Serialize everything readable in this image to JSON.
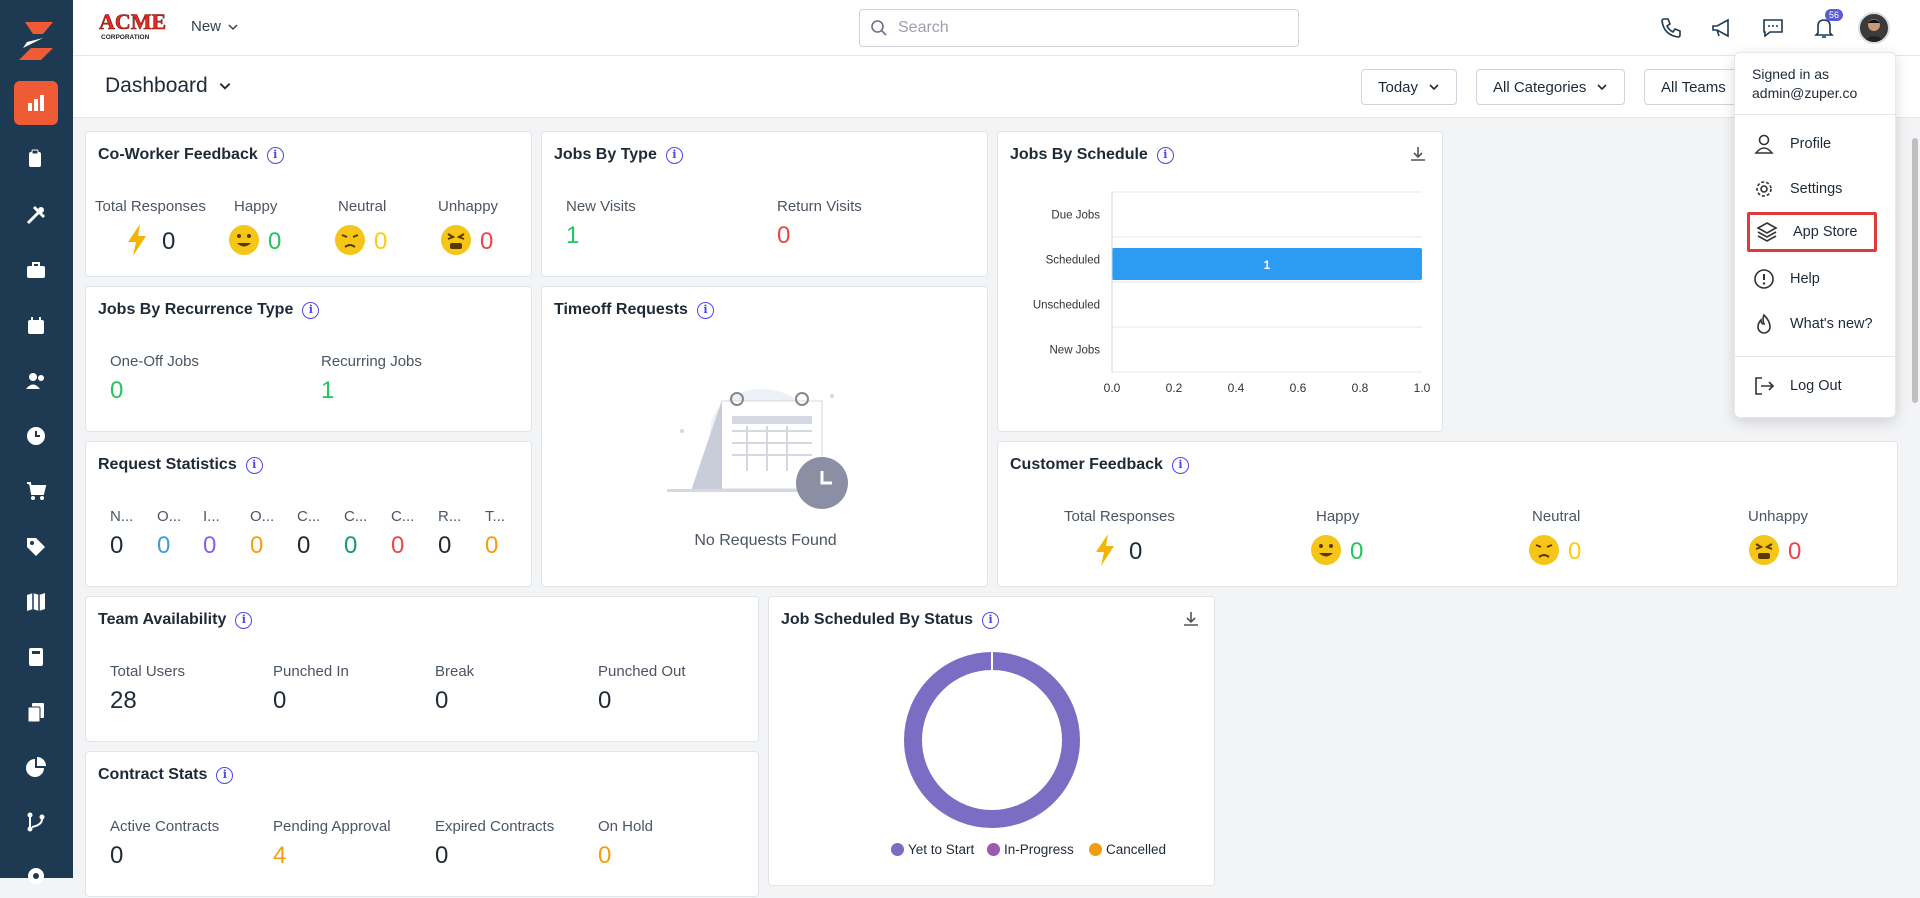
{
  "topbar": {
    "new_label": "New",
    "search_placeholder": "Search",
    "notif_count": "56"
  },
  "subbar": {
    "title": "Dashboard",
    "filters": [
      "Today",
      "All Categories",
      "All Teams"
    ]
  },
  "coworker": {
    "title": "Co-Worker Feedback",
    "labels": [
      "Total Responses",
      "Happy",
      "Neutral",
      "Unhappy"
    ],
    "values": [
      "0",
      "0",
      "0",
      "0"
    ]
  },
  "jobs_by_type": {
    "title": "Jobs By Type",
    "labels": [
      "New Visits",
      "Return Visits"
    ],
    "values": [
      "1",
      "0"
    ]
  },
  "jobs_by_schedule": {
    "title": "Jobs By Schedule"
  },
  "recurrence": {
    "title": "Jobs By Recurrence Type",
    "labels": [
      "One-Off Jobs",
      "Recurring Jobs"
    ],
    "values": [
      "0",
      "1"
    ]
  },
  "timeoff": {
    "title": "Timeoff Requests",
    "empty": "No Requests Found"
  },
  "request_stats": {
    "title": "Request Statistics",
    "labels": [
      "N...",
      "O...",
      "I...",
      "O...",
      "C...",
      "C...",
      "C...",
      "R...",
      "T..."
    ],
    "values": [
      "0",
      "0",
      "0",
      "0",
      "0",
      "0",
      "0",
      "0",
      "0"
    ]
  },
  "customer_feedback": {
    "title": "Customer Feedback",
    "labels": [
      "Total Responses",
      "Happy",
      "Neutral",
      "Unhappy"
    ],
    "values": [
      "0",
      "0",
      "0",
      "0"
    ]
  },
  "team": {
    "title": "Team Availability",
    "labels": [
      "Total Users",
      "Punched In",
      "Break",
      "Punched Out"
    ],
    "values": [
      "28",
      "0",
      "0",
      "0"
    ]
  },
  "status_chart": {
    "title": "Job Scheduled By Status"
  },
  "contract": {
    "title": "Contract Stats",
    "labels": [
      "Active Contracts",
      "Pending Approval",
      "Expired Contracts",
      "On Hold"
    ],
    "values": [
      "0",
      "4",
      "0",
      "0"
    ]
  },
  "user_menu": {
    "signed_in_as": "Signed in as",
    "email": "admin@zuper.co",
    "items": [
      "Profile",
      "Settings",
      "App Store",
      "Help",
      "What's new?",
      "Log Out"
    ]
  },
  "chart_data": [
    {
      "type": "bar",
      "title": "Jobs By Schedule",
      "orientation": "horizontal",
      "categories": [
        "Due Jobs",
        "Scheduled",
        "Unscheduled",
        "New Jobs"
      ],
      "values": [
        0,
        1,
        0,
        0
      ],
      "xlim": [
        0,
        1.0
      ],
      "xticks": [
        "0.0",
        "0.2",
        "0.4",
        "0.6",
        "0.8",
        "1.0"
      ],
      "bar_color": "#2b9cf2"
    },
    {
      "type": "pie",
      "title": "Job Scheduled By Status",
      "donut": true,
      "labels": [
        "Yet to Start",
        "In-Progress",
        "Cancelled"
      ],
      "values": [
        1,
        0,
        0
      ],
      "colors": [
        "#7b6cc4",
        "#9b59b6",
        "#f39c12"
      ]
    }
  ]
}
